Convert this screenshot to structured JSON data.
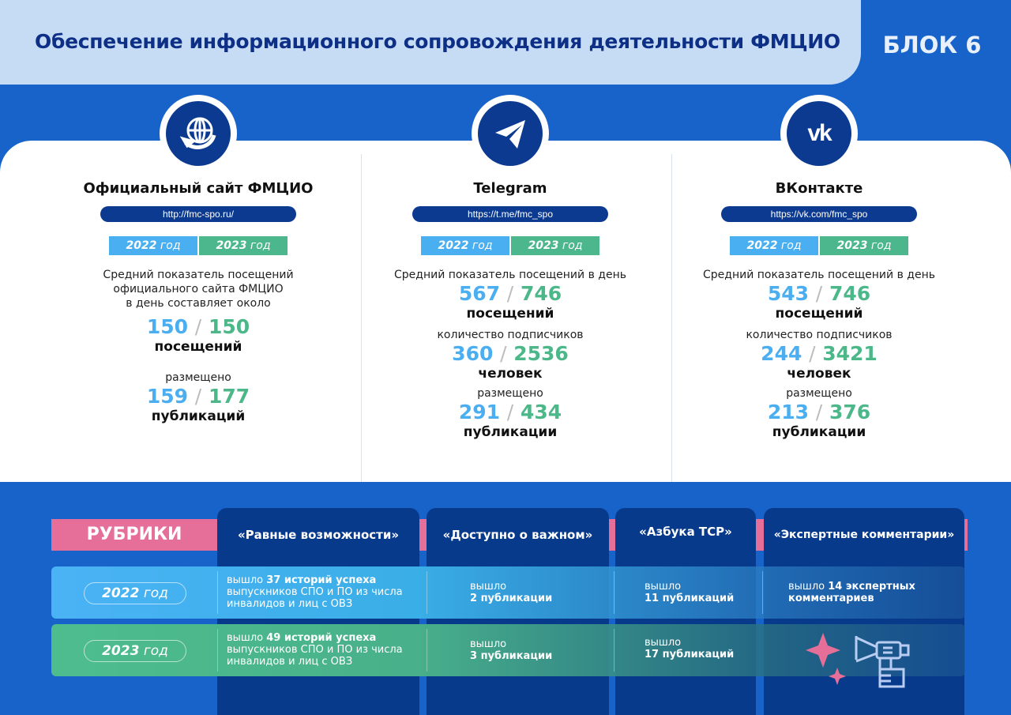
{
  "header": {
    "title": "Обеспечение информационного сопровождения деятельности ФМЦИО",
    "block": "БЛОК 6"
  },
  "year_labels": {
    "y2022": "2022",
    "y2023": "2023",
    "god": "год"
  },
  "slash": "/",
  "cards": [
    {
      "icon": "globe-icon",
      "title": "Официальный сайт ФМЦИО",
      "url": "http://fmc-spo.ru/",
      "desc": [
        "Средний показатель посещений",
        "официального сайта ФМЦИО",
        "в день составляет около"
      ],
      "visits": [
        "150",
        "150"
      ],
      "visits_unit": "посещений",
      "pub_label": "размещено",
      "pubs": [
        "159",
        "177"
      ],
      "pubs_unit": "публикаций"
    },
    {
      "icon": "telegram-icon",
      "title": "Telegram",
      "url": "https://t.me/fmc_spo",
      "desc": [
        "Средний показатель посещений в день"
      ],
      "visits": [
        "567",
        "746"
      ],
      "visits_unit": "посещений",
      "subs_label": "количество подписчиков",
      "subs": [
        "360",
        "2536"
      ],
      "subs_unit": "человек",
      "pub_label": "размещено",
      "pubs": [
        "291",
        "434"
      ],
      "pubs_unit": "публикации"
    },
    {
      "icon": "vk-icon",
      "title": "ВКонтакте",
      "url": "https://vk.com/fmc_spo",
      "desc": [
        "Средний показатель посещений в день"
      ],
      "visits": [
        "543",
        "746"
      ],
      "visits_unit": "посещений",
      "subs_label": "количество подписчиков",
      "subs": [
        "244",
        "3421"
      ],
      "subs_unit": "человек",
      "pub_label": "размещено",
      "pubs": [
        "213",
        "376"
      ],
      "pubs_unit": "публикации"
    }
  ],
  "rubrics": {
    "label": "РУБРИКИ",
    "columns": [
      "«Равные возможности»",
      "«Доступно о важном»",
      "«Азбука ТСР»",
      "«Экспертные комментарии»"
    ],
    "rows": [
      {
        "year": "2022",
        "cells": [
          {
            "pre": "вышло ",
            "bold": "37 историй успеха",
            "rest": "выпускников СПО и ПО из числа инвалидов и лиц с ОВЗ"
          },
          {
            "pre": "вышло",
            "bold": "2 публикации"
          },
          {
            "pre": "вышло",
            "bold": "11 публикаций"
          },
          {
            "pre": "вышло ",
            "bold": "14 экспертных комментариев"
          }
        ]
      },
      {
        "year": "2023",
        "cells": [
          {
            "pre": "вышло ",
            "bold": "49 историй успеха",
            "rest": "выпускников СПО и ПО из числа инвалидов и лиц с ОВЗ"
          },
          {
            "pre": "вышло",
            "bold": "3 публикации"
          },
          {
            "pre": "вышло",
            "bold": "17 публикаций"
          }
        ]
      }
    ]
  },
  "colors": {
    "navy": "#0b3a90",
    "blue": "#4aaef0",
    "green": "#4cb88a",
    "pink": "#e56f98"
  }
}
